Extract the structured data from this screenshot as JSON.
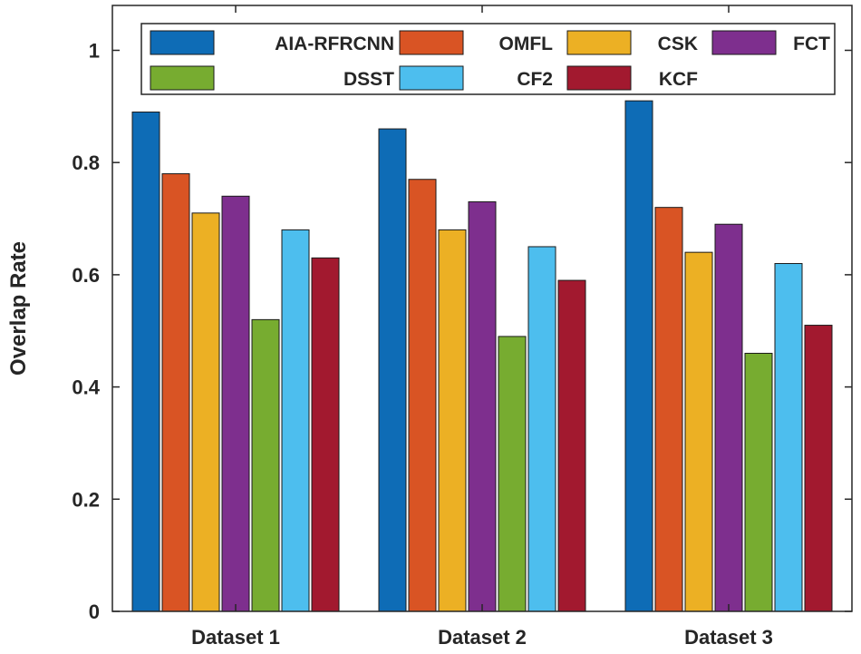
{
  "chart_data": {
    "type": "bar",
    "title": "",
    "xlabel": "",
    "ylabel": "Overlap Rate",
    "ylim": [
      0,
      1.08
    ],
    "yticks": [
      0,
      0.2,
      0.4,
      0.6,
      0.8,
      1
    ],
    "ytick_labels": [
      "0",
      "0.2",
      "0.4",
      "0.6",
      "0.8",
      "1"
    ],
    "grid": false,
    "legend_position": "top",
    "categories": [
      "Dataset 1",
      "Dataset 2",
      "Dataset 3"
    ],
    "series": [
      {
        "name": "AIA-RFRCNN",
        "color": "#0e6cb6",
        "values": [
          0.89,
          0.86,
          0.91
        ]
      },
      {
        "name": "OMFL",
        "color": "#d95424",
        "values": [
          0.78,
          0.77,
          0.72
        ]
      },
      {
        "name": "CSK",
        "color": "#ecb024",
        "values": [
          0.71,
          0.68,
          0.64
        ]
      },
      {
        "name": "FCT",
        "color": "#7e2f8e",
        "values": [
          0.74,
          0.73,
          0.69
        ]
      },
      {
        "name": "DSST",
        "color": "#77ac30",
        "values": [
          0.52,
          0.49,
          0.46
        ]
      },
      {
        "name": "CF2",
        "color": "#4dbeee",
        "values": [
          0.68,
          0.65,
          0.62
        ]
      },
      {
        "name": "KCF",
        "color": "#a2192f",
        "values": [
          0.63,
          0.59,
          0.51
        ]
      }
    ]
  }
}
